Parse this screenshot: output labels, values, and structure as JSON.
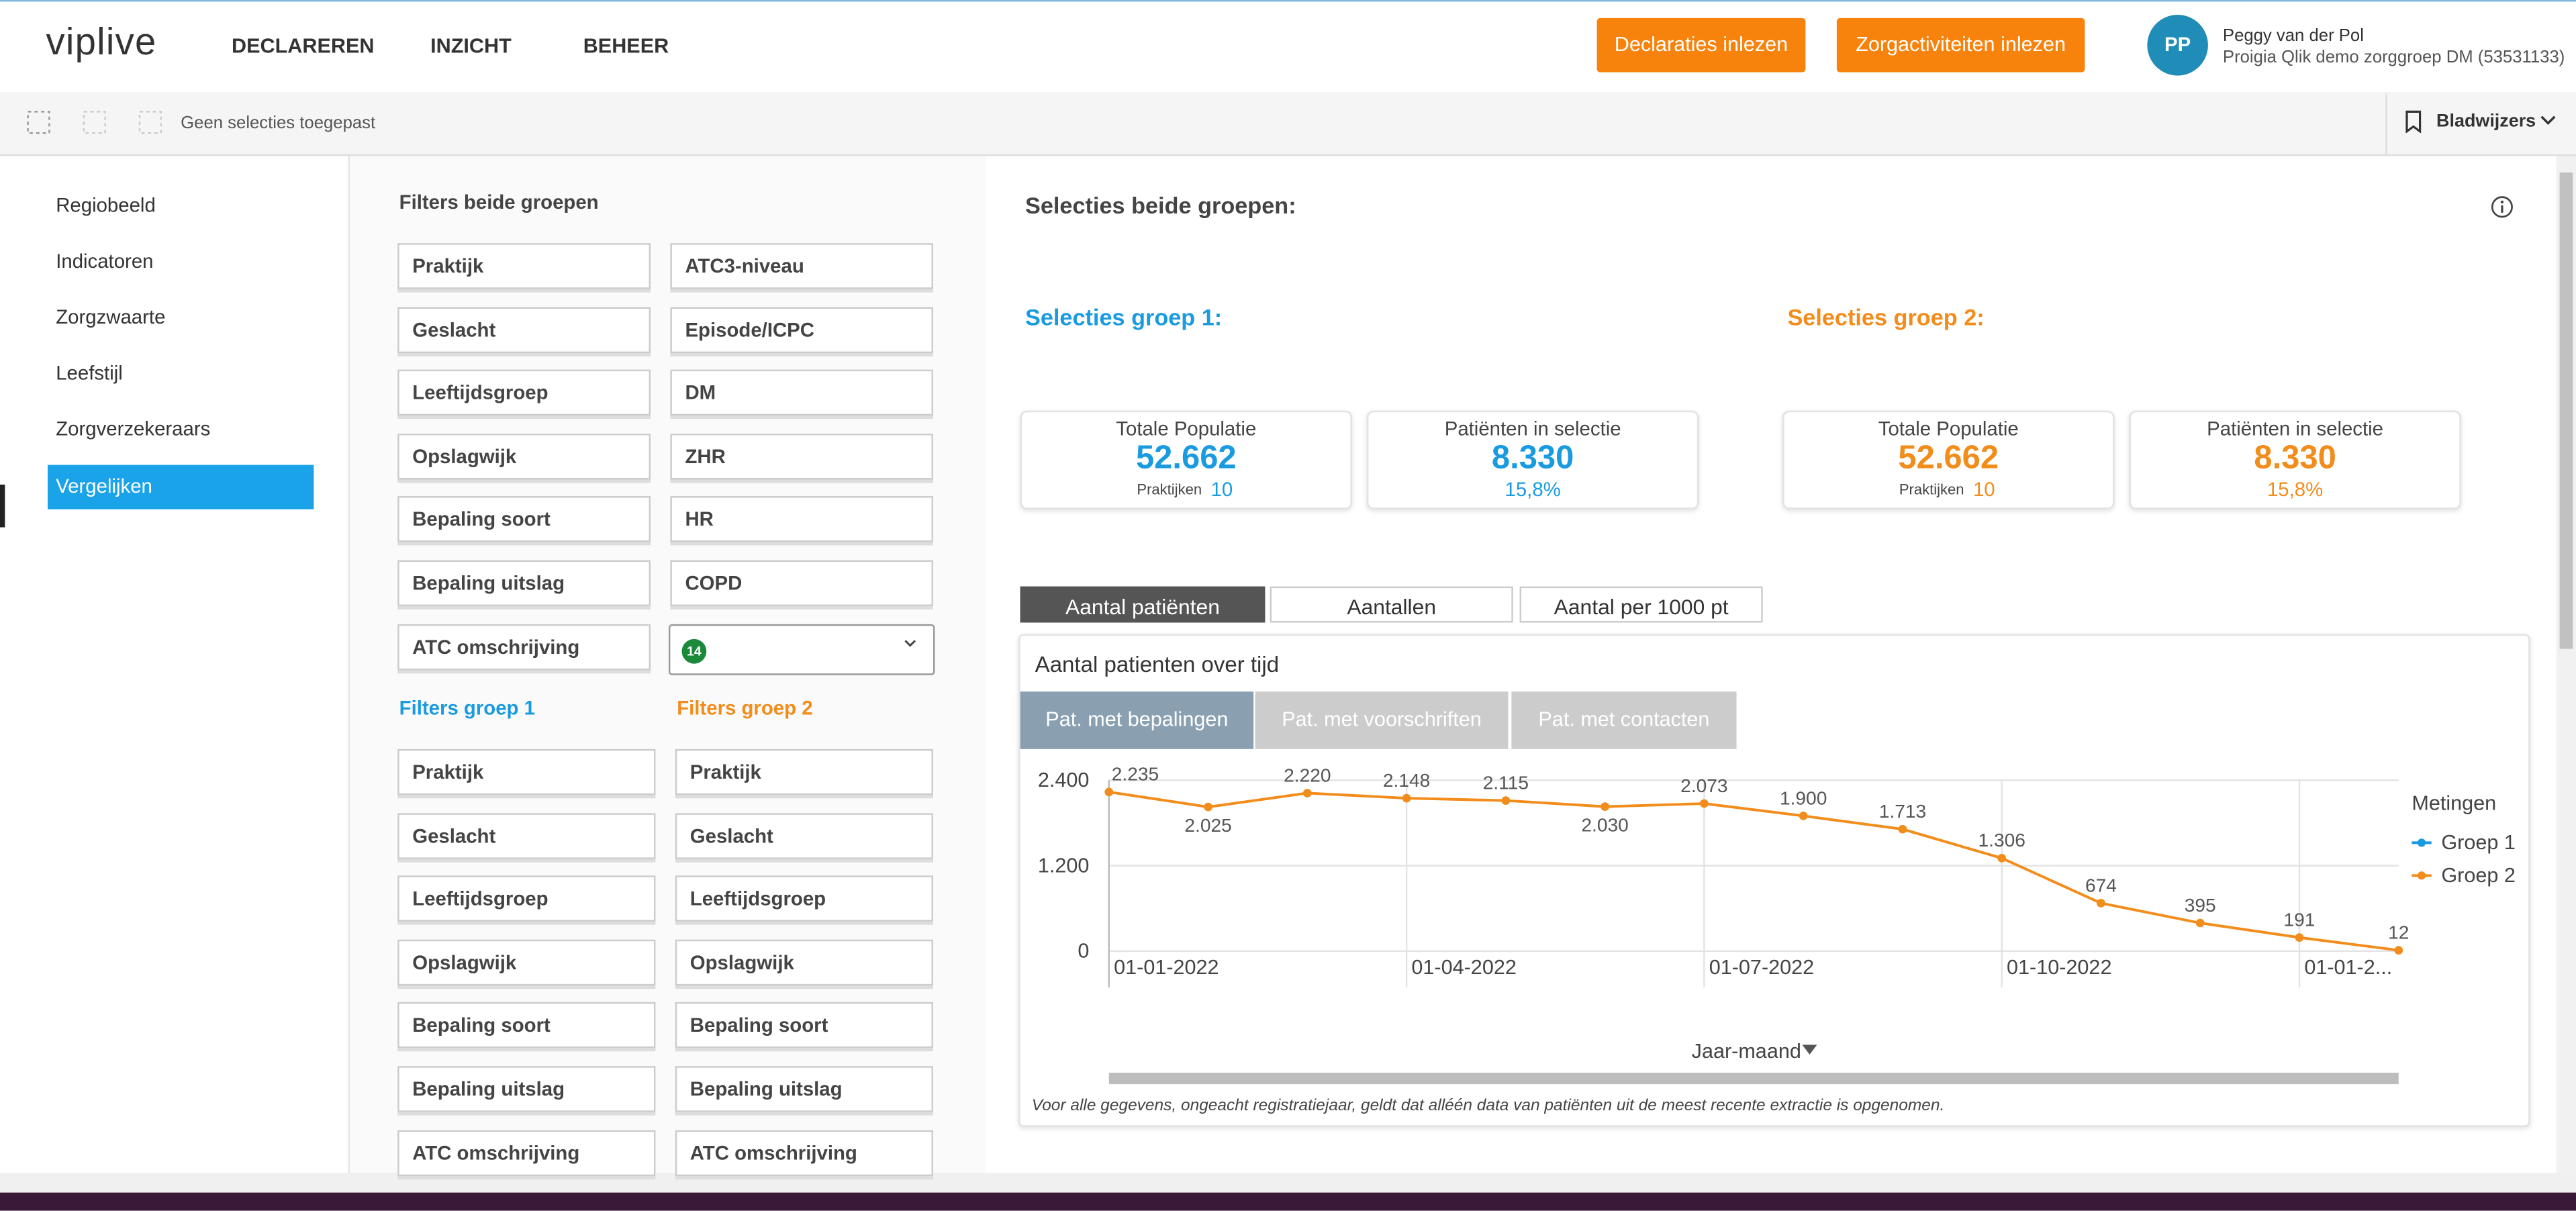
{
  "nav": {
    "logo": "viplive",
    "menu": [
      "DECLAREREN",
      "INZICHT",
      "BEHEER"
    ],
    "buttons": [
      "Declaraties inlezen",
      "Zorgactiviteiten inlezen"
    ],
    "user": {
      "initials": "PP",
      "name": "Peggy van der Pol",
      "org": "Proigia Qlik demo zorggroep DM (53531133)"
    }
  },
  "toolbar": {
    "status": "Geen selecties toegepast",
    "bookmarks": "Bladwijzers"
  },
  "sidebar": {
    "items": [
      "Regiobeeld",
      "Indicatoren",
      "Zorgzwaarte",
      "Leefstijl",
      "Zorgverzekeraars",
      "Vergelijken"
    ],
    "active": 5
  },
  "filters": {
    "both_title": "Filters beide groepen",
    "both_left": [
      "Praktijk",
      "Geslacht",
      "Leeftijdsgroep",
      "Opslagwijk",
      "Bepaling soort",
      "Bepaling uitslag",
      "ATC omschrijving"
    ],
    "both_right": [
      "ATC3-niveau",
      "Episode/ICPC",
      "DM",
      "ZHR",
      "HR",
      "COPD"
    ],
    "badge": "14",
    "group1_title": "Filters groep 1",
    "group2_title": "Filters groep 2",
    "group1": [
      "Praktijk",
      "Geslacht",
      "Leeftijdsgroep",
      "Opslagwijk",
      "Bepaling soort",
      "Bepaling uitslag",
      "ATC omschrijving"
    ],
    "group2": [
      "Praktijk",
      "Geslacht",
      "Leeftijdsgroep",
      "Opslagwijk",
      "Bepaling soort",
      "Bepaling uitslag",
      "ATC omschrijving"
    ]
  },
  "selections": {
    "both": "Selecties beide groepen:",
    "group1": "Selecties groep 1:",
    "group2": "Selecties groep 2:"
  },
  "kpis": {
    "group1": [
      {
        "label": "Totale Populatie",
        "value": "52.662",
        "sub_label": "Praktijken",
        "sub_value": "10"
      },
      {
        "label": "Patiënten in selectie",
        "value": "8.330",
        "sub_value": "15,8%"
      }
    ],
    "group2": [
      {
        "label": "Totale Populatie",
        "value": "52.662",
        "sub_label": "Praktijken",
        "sub_value": "10"
      },
      {
        "label": "Patiënten in selectie",
        "value": "8.330",
        "sub_value": "15,8%"
      }
    ]
  },
  "tabs": [
    "Aantal patiënten",
    "Aantallen",
    "Aantal per 1000 pt"
  ],
  "subtabs": [
    "Pat. met bepalingen",
    "Pat. met voorschriften",
    "Pat. met contacten"
  ],
  "footnote": "Voor alle gegevens, ongeacht registratiejaar, geldt dat alléén data van patiënten uit de meest recente extractie is opgenomen.",
  "chart_data": {
    "type": "line",
    "title": "Aantal patienten over tijd",
    "x_label": "Jaar-maand",
    "legend_title": "Metingen",
    "categories": [
      "01-01-2022",
      null,
      null,
      "01-04-2022",
      null,
      null,
      "01-07-2022",
      null,
      null,
      "01-10-2022",
      null,
      null,
      "01-01-2...",
      null
    ],
    "series": [
      {
        "name": "Groep 1",
        "color": "#1a9be0",
        "values": [
          null,
          null,
          null,
          null,
          null,
          null,
          null,
          null,
          null,
          null,
          null,
          null,
          null,
          null
        ]
      },
      {
        "name": "Groep 2",
        "color": "#f28c1b",
        "values": [
          2235,
          2025,
          2220,
          2148,
          2115,
          2030,
          2073,
          1900,
          1713,
          1306,
          674,
          395,
          191,
          12
        ],
        "value_labels": [
          "2.235",
          "2.025",
          "2.220",
          "2.148",
          "2.115",
          "2.030",
          "2.073",
          "1.900",
          "1.713",
          "1.306",
          "674",
          "395",
          "191",
          "12"
        ]
      }
    ],
    "ylim": [
      0,
      2400
    ],
    "yticks": [
      {
        "value": 0,
        "label": "0"
      },
      {
        "value": 1200,
        "label": "1.200"
      },
      {
        "value": 2400,
        "label": "2.400"
      }
    ],
    "grid": true,
    "legend": "right"
  }
}
